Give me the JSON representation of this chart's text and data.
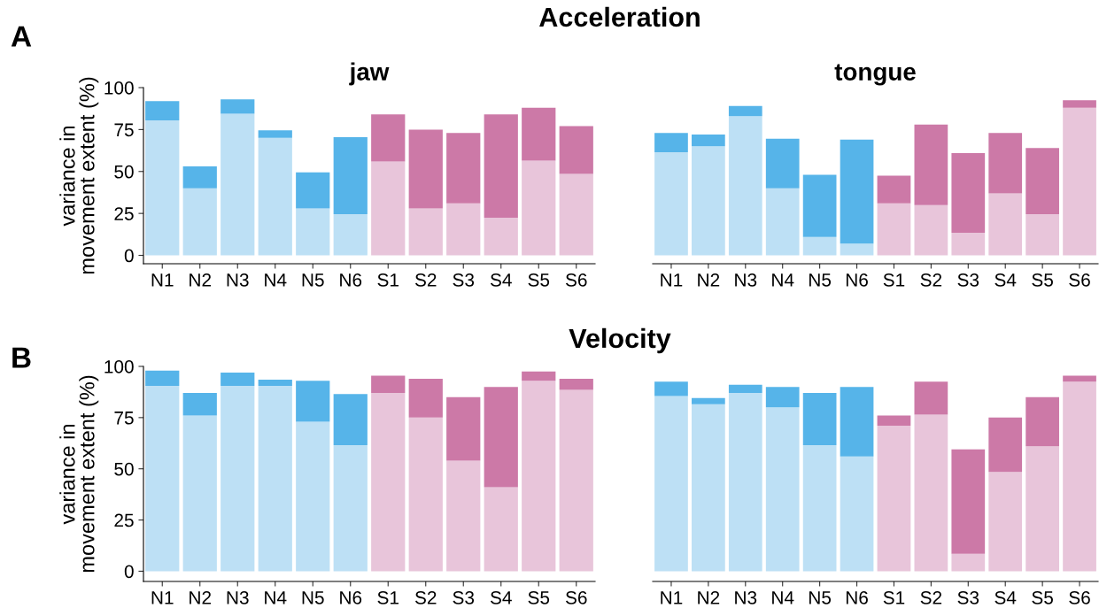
{
  "chart_data": [
    {
      "type": "bar",
      "stacked": true,
      "title": "jaw",
      "ylabel": "variance in\nmovement extent (%)",
      "annotations": [
        "A",
        "Acceleration"
      ],
      "categories": [
        "N1",
        "N2",
        "N3",
        "N4",
        "N5",
        "N6",
        "S1",
        "S2",
        "S3",
        "S4",
        "S5",
        "S6"
      ],
      "series": [
        {
          "colors": [
            "#bde0f5",
            "#bde0f5",
            "#bde0f5",
            "#bde0f5",
            "#bde0f5",
            "#bde0f5",
            "#e8c5da",
            "#e8c5da",
            "#e8c5da",
            "#e8c5da",
            "#e8c5da",
            "#e8c5da"
          ],
          "values": [
            80.5,
            40,
            84.5,
            70,
            28,
            24.5,
            56,
            28,
            31,
            22.5,
            56.5,
            48.5
          ]
        },
        {
          "colors": [
            "#56b4e9",
            "#56b4e9",
            "#56b4e9",
            "#56b4e9",
            "#56b4e9",
            "#56b4e9",
            "#cc79a7",
            "#cc79a7",
            "#cc79a7",
            "#cc79a7",
            "#cc79a7",
            "#cc79a7"
          ],
          "values": [
            11.5,
            13,
            8.5,
            4.5,
            21.5,
            46,
            28,
            47,
            42,
            61.5,
            31.5,
            28.5
          ]
        }
      ],
      "ylim": [
        -5,
        100
      ],
      "yticks": [
        0,
        25,
        50,
        75,
        100
      ],
      "grid": false,
      "legend": false
    },
    {
      "type": "bar",
      "stacked": true,
      "title": "tongue",
      "tick_labels": "x",
      "categories": [
        "N1",
        "N2",
        "N3",
        "N4",
        "N5",
        "N6",
        "S1",
        "S2",
        "S3",
        "S4",
        "S5",
        "S6"
      ],
      "series": [
        {
          "colors": [
            "#bde0f5",
            "#bde0f5",
            "#bde0f5",
            "#bde0f5",
            "#bde0f5",
            "#bde0f5",
            "#e8c5da",
            "#e8c5da",
            "#e8c5da",
            "#e8c5da",
            "#e8c5da",
            "#e8c5da"
          ],
          "values": [
            61.5,
            65,
            83,
            40,
            11,
            7,
            31,
            30,
            13.5,
            37,
            24.5,
            88
          ]
        },
        {
          "colors": [
            "#56b4e9",
            "#56b4e9",
            "#56b4e9",
            "#56b4e9",
            "#56b4e9",
            "#56b4e9",
            "#cc79a7",
            "#cc79a7",
            "#cc79a7",
            "#cc79a7",
            "#cc79a7",
            "#cc79a7"
          ],
          "values": [
            11.5,
            7,
            6,
            29.5,
            37,
            62,
            16.5,
            48,
            47.5,
            36,
            39.5,
            4.5
          ]
        }
      ],
      "ylim": [
        -5,
        100
      ],
      "yticks": [
        0,
        25,
        50,
        75,
        100
      ],
      "grid": false,
      "legend": false
    },
    {
      "type": "bar",
      "stacked": true,
      "ylabel": "variance in\nmovement extent (%)",
      "annotations": [
        "B",
        "Velocity"
      ],
      "categories": [
        "N1",
        "N2",
        "N3",
        "N4",
        "N5",
        "N6",
        "S1",
        "S2",
        "S3",
        "S4",
        "S5",
        "S6"
      ],
      "series": [
        {
          "colors": [
            "#bde0f5",
            "#bde0f5",
            "#bde0f5",
            "#bde0f5",
            "#bde0f5",
            "#bde0f5",
            "#e8c5da",
            "#e8c5da",
            "#e8c5da",
            "#e8c5da",
            "#e8c5da",
            "#e8c5da"
          ],
          "values": [
            90.5,
            76,
            90.5,
            90.5,
            73,
            61.5,
            87,
            75,
            54,
            41,
            93,
            88.5
          ]
        },
        {
          "colors": [
            "#56b4e9",
            "#56b4e9",
            "#56b4e9",
            "#56b4e9",
            "#56b4e9",
            "#56b4e9",
            "#cc79a7",
            "#cc79a7",
            "#cc79a7",
            "#cc79a7",
            "#cc79a7",
            "#cc79a7"
          ],
          "values": [
            7.5,
            11,
            6.5,
            3,
            20,
            25,
            8.5,
            19,
            31,
            49,
            4.5,
            5.5
          ]
        }
      ],
      "ylim": [
        -5,
        100
      ],
      "yticks": [
        0,
        25,
        50,
        75,
        100
      ],
      "grid": false,
      "legend": false
    },
    {
      "type": "bar",
      "stacked": true,
      "tick_labels": "x",
      "categories": [
        "N1",
        "N2",
        "N3",
        "N4",
        "N5",
        "N6",
        "S1",
        "S2",
        "S3",
        "S4",
        "S5",
        "S6"
      ],
      "series": [
        {
          "colors": [
            "#bde0f5",
            "#bde0f5",
            "#bde0f5",
            "#bde0f5",
            "#bde0f5",
            "#bde0f5",
            "#e8c5da",
            "#e8c5da",
            "#e8c5da",
            "#e8c5da",
            "#e8c5da",
            "#e8c5da"
          ],
          "values": [
            85.5,
            81.5,
            87,
            80,
            61.5,
            56,
            71,
            76.5,
            8.5,
            48.5,
            61,
            92.5
          ]
        },
        {
          "colors": [
            "#56b4e9",
            "#56b4e9",
            "#56b4e9",
            "#56b4e9",
            "#56b4e9",
            "#56b4e9",
            "#cc79a7",
            "#cc79a7",
            "#cc79a7",
            "#cc79a7",
            "#cc79a7",
            "#cc79a7"
          ],
          "values": [
            7,
            3,
            4,
            10,
            25.5,
            34,
            5,
            16,
            51,
            26.5,
            24,
            3
          ]
        }
      ],
      "ylim": [
        -5,
        100
      ],
      "yticks": [
        0,
        25,
        50,
        75,
        100
      ],
      "grid": false,
      "legend": false
    }
  ]
}
